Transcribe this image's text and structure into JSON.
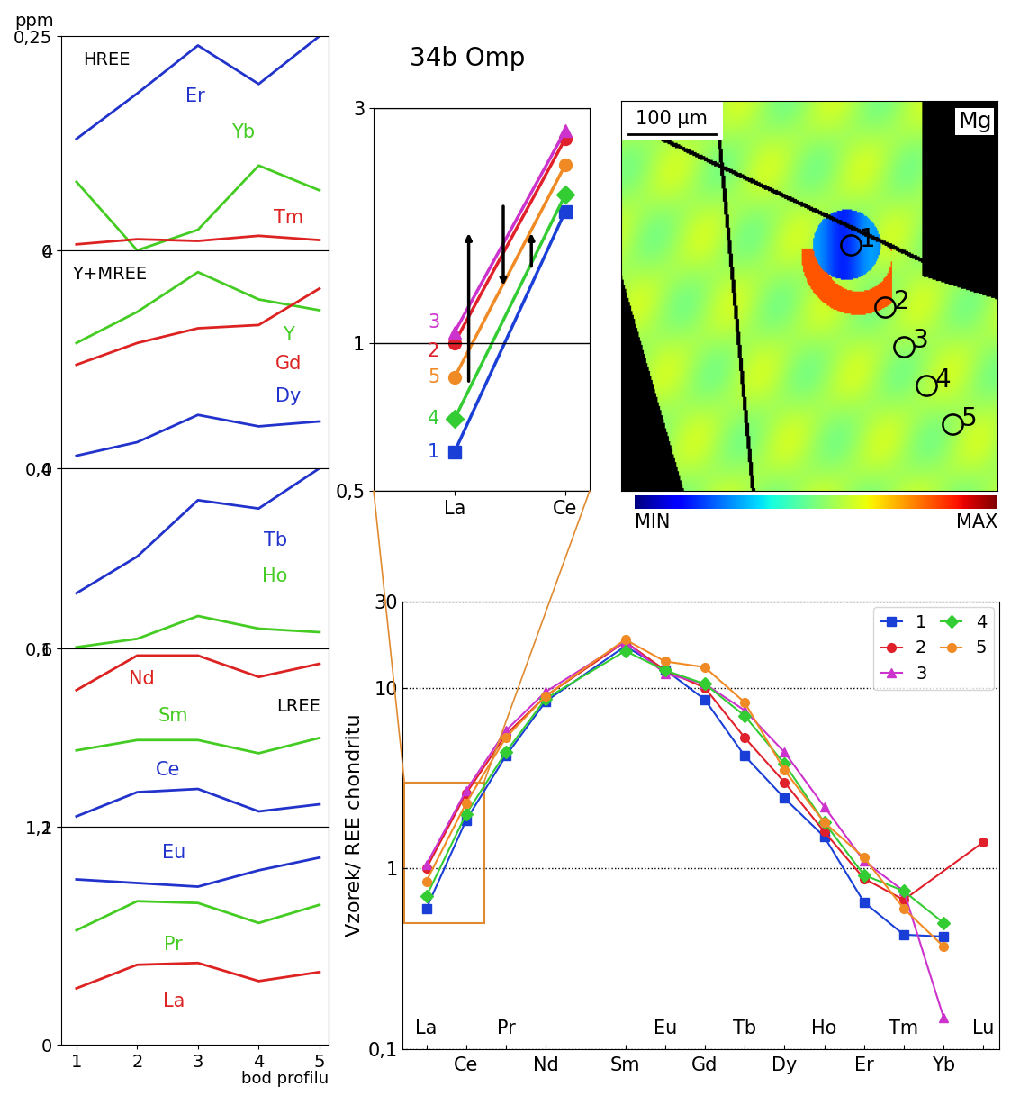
{
  "title": "34b Omp",
  "chart_data": [
    {
      "type": "line",
      "title": "HREE",
      "y_label": "ppm",
      "x": [
        1,
        2,
        3,
        4,
        5
      ],
      "xlim": [
        0.75,
        5.15
      ],
      "xticks": [
        1,
        2,
        3,
        4,
        5
      ],
      "ylim": [
        0,
        0.25
      ],
      "yticks": [
        0,
        {
          "value": 0.25,
          "label": "0,25"
        }
      ],
      "tick_labels": "y",
      "series": [
        {
          "name": "Er",
          "color": "#2233cc",
          "values": [
            0.13,
            0.183,
            0.239,
            0.194,
            0.25
          ]
        },
        {
          "name": "Yb",
          "color": "#44cc22",
          "values": [
            0.08,
            0.0,
            0.024,
            0.099,
            0.07
          ]
        },
        {
          "name": "Tm",
          "color": "#dd2222",
          "values": [
            0.007,
            0.013,
            0.011,
            0.017,
            0.012
          ]
        }
      ]
    },
    {
      "type": "line",
      "title": "Y+MREE",
      "x": [
        1,
        2,
        3,
        4,
        5
      ],
      "xlim": [
        0.75,
        5.15
      ],
      "xticks": [
        1,
        2,
        3,
        4,
        5
      ],
      "ylim": [
        0,
        4
      ],
      "yticks": [
        0,
        4
      ],
      "tick_labels": "y",
      "series": [
        {
          "name": "Y",
          "color": "#44cc22",
          "values": [
            2.3,
            2.87,
            3.6,
            3.1,
            2.9
          ]
        },
        {
          "name": "Gd",
          "color": "#dd2222",
          "values": [
            1.9,
            2.3,
            2.57,
            2.63,
            3.3
          ]
        },
        {
          "name": "Dy",
          "color": "#2233cc",
          "values": [
            0.23,
            0.48,
            0.98,
            0.77,
            0.86
          ]
        }
      ]
    },
    {
      "type": "line",
      "x": [
        1,
        2,
        3,
        4,
        5
      ],
      "xlim": [
        0.75,
        5.15
      ],
      "xticks": [
        1,
        2,
        3,
        4,
        5
      ],
      "ylim": [
        0.1,
        0.4
      ],
      "yticks": [
        {
          "value": 0.1,
          "label": "0,1"
        },
        {
          "value": 0.4,
          "label": "0,4"
        }
      ],
      "tick_labels": "y",
      "series": [
        {
          "name": "Tb",
          "color": "#2233cc",
          "values": [
            0.192,
            0.253,
            0.347,
            0.333,
            0.4
          ]
        },
        {
          "name": "Ho",
          "color": "#44cc22",
          "values": [
            0.102,
            0.116,
            0.154,
            0.133,
            0.127
          ]
        }
      ]
    },
    {
      "type": "line",
      "title": "LREE",
      "x": [
        1,
        2,
        3,
        4,
        5
      ],
      "xlim": [
        0.75,
        5.15
      ],
      "xticks": [
        1,
        2,
        3,
        4,
        5
      ],
      "ylim": [
        1,
        6
      ],
      "yticks": [
        1,
        6
      ],
      "tick_labels": "y",
      "series": [
        {
          "name": "Nd",
          "color": "#dd2222",
          "values": [
            4.83,
            5.8,
            5.8,
            5.2,
            5.57
          ]
        },
        {
          "name": "Sm",
          "color": "#44cc22",
          "values": [
            3.14,
            3.43,
            3.43,
            3.06,
            3.49
          ]
        },
        {
          "name": "Ce",
          "color": "#2233cc",
          "values": [
            1.29,
            1.97,
            2.06,
            1.43,
            1.63
          ]
        }
      ]
    },
    {
      "type": "line",
      "x_label": "bod profilu",
      "x": [
        1,
        2,
        3,
        4,
        5
      ],
      "xlim": [
        0.75,
        5.15
      ],
      "xticks": [
        1,
        2,
        3,
        4,
        5
      ],
      "ylim": [
        0,
        1.2
      ],
      "yticks": [
        0,
        {
          "value": 1.2,
          "label": "1,2"
        }
      ],
      "series": [
        {
          "name": "Eu",
          "color": "#2233cc",
          "values": [
            0.91,
            0.89,
            0.87,
            0.96,
            1.03
          ]
        },
        {
          "name": "Pr",
          "color": "#44cc22",
          "values": [
            0.63,
            0.79,
            0.78,
            0.67,
            0.77
          ]
        },
        {
          "name": "La",
          "color": "#dd2222",
          "values": [
            0.31,
            0.44,
            0.45,
            0.35,
            0.4
          ]
        }
      ]
    },
    {
      "type": "line",
      "categories": [
        "La",
        "Ce"
      ],
      "log": "y",
      "ylim": [
        0.5,
        3
      ],
      "yticks": [
        {
          "value": 0.5,
          "label": "0,5"
        },
        1,
        3
      ],
      "series": [
        {
          "name": "1",
          "color": "#1a3fd6",
          "marker": "square",
          "values": [
            0.6,
            1.85
          ]
        },
        {
          "name": "2",
          "color": "#e0202a",
          "marker": "circle",
          "values": [
            1.0,
            2.6
          ]
        },
        {
          "name": "3",
          "color": "#cc33cc",
          "marker": "triangle",
          "values": [
            1.05,
            2.7
          ]
        },
        {
          "name": "4",
          "color": "#33cc33",
          "marker": "diamond",
          "values": [
            0.7,
            2.0
          ]
        },
        {
          "name": "5",
          "color": "#f08a24",
          "marker": "circle",
          "values": [
            0.85,
            2.3
          ]
        }
      ]
    },
    {
      "type": "line",
      "y_label": "Vzorek/ REE chondritu",
      "categories": [
        "La",
        "Ce",
        "Pr",
        "Nd",
        null,
        "Sm",
        "Eu",
        "Gd",
        "Tb",
        "Dy",
        "Ho",
        "Er",
        "Tm",
        "Yb",
        "Lu"
      ],
      "log": "y",
      "ylim": [
        0.1,
        30
      ],
      "yticks": [
        {
          "value": 0.1,
          "label": "0,1"
        },
        1,
        10,
        30
      ],
      "grid": true,
      "legend": "upper right",
      "series": [
        {
          "name": "1",
          "color": "#1a3fd6",
          "marker": "square",
          "values": [
            0.6,
            1.85,
            4.2,
            8.4,
            null,
            17,
            12.6,
            8.6,
            4.2,
            2.45,
            1.5,
            0.65,
            0.43,
            0.42,
            null
          ]
        },
        {
          "name": "2",
          "color": "#e0202a",
          "marker": "circle",
          "values": [
            1.0,
            2.6,
            5.5,
            9,
            null,
            18,
            12.5,
            10,
            5.3,
            3.0,
            1.6,
            0.88,
            0.67,
            null,
            1.4
          ]
        },
        {
          "name": "3",
          "color": "#cc33cc",
          "marker": "triangle",
          "values": [
            1.05,
            2.7,
            5.8,
            9.5,
            null,
            18,
            12,
            10.5,
            7.5,
            4.4,
            2.2,
            1.1,
            0.75,
            0.15,
            null
          ]
        },
        {
          "name": "4",
          "color": "#33cc33",
          "marker": "diamond",
          "values": [
            0.7,
            2.0,
            4.4,
            8.7,
            null,
            16,
            12.5,
            10.5,
            7.0,
            3.8,
            1.8,
            0.92,
            0.75,
            0.5,
            null
          ]
        },
        {
          "name": "5",
          "color": "#f08a24",
          "marker": "circle",
          "values": [
            0.85,
            2.3,
            5.3,
            9,
            null,
            18.5,
            14,
            13,
            8.3,
            3.5,
            1.8,
            1.15,
            0.6,
            0.37,
            null
          ]
        }
      ]
    }
  ],
  "map": {
    "label": "Mg",
    "scale_bar": "100 µm",
    "colorbar": [
      "MIN",
      "MAX"
    ],
    "points": [
      "1",
      "2",
      "3",
      "4",
      "5"
    ]
  }
}
